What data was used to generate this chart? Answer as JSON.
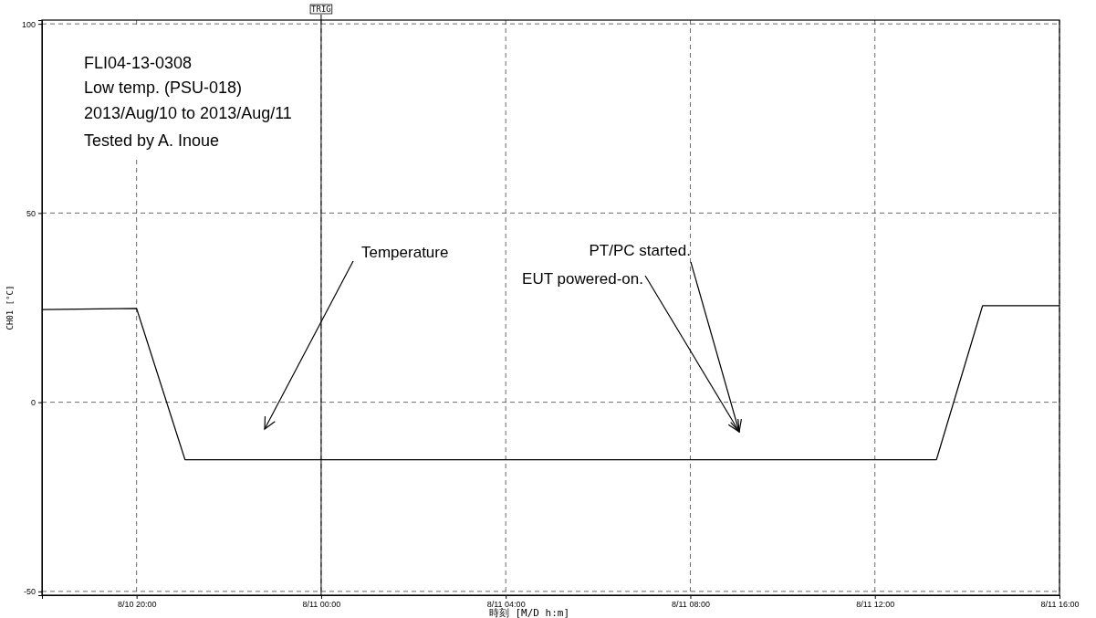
{
  "chart_data": {
    "type": "line",
    "xlabel": "時刻 [M/D h:m]",
    "ylabel": "CH01 [°C]",
    "x": [
      "2013-08-10T17:57",
      "2013-08-10T20:00",
      "2013-08-10T21:03",
      "2013-08-11T13:20",
      "2013-08-11T14:20",
      "2013-08-11T16:00"
    ],
    "series": [
      {
        "color": "#000000",
        "values": [
          24.5,
          24.8,
          -15.2,
          -15.2,
          25.5,
          25.5
        ]
      }
    ],
    "xlim": [
      "2013-08-10T17:57",
      "2013-08-11T16:00"
    ],
    "xticks": [
      {
        "value": "2013-08-10T20:00",
        "label": "8/10 20:00"
      },
      {
        "value": "2013-08-11T00:00",
        "label": "8/11 00:00"
      },
      {
        "value": "2013-08-11T04:00",
        "label": "8/11 04:00"
      },
      {
        "value": "2013-08-11T08:00",
        "label": "8/11 08:00"
      },
      {
        "value": "2013-08-11T12:00",
        "label": "8/11 12:00"
      },
      {
        "value": "2013-08-11T16:00",
        "label": "8/11 16:00"
      }
    ],
    "ylim": [
      -51,
      101
    ],
    "yticks": [
      -50,
      0,
      50,
      100
    ],
    "grid": true,
    "marker": "none",
    "line_style": "solid",
    "ref_lines": [
      {
        "axis": "x",
        "value": "2013-08-11T00:00",
        "label": "TRIG",
        "color": "#000000"
      }
    ],
    "annotations": [
      "FLI04-13-0308",
      "Low temp. (PSU-018)",
      "2013/Aug/10 to 2013/Aug/11",
      "Tested by A. Inoue",
      "Temperature",
      "PT/PC started.",
      "EUT powered-on."
    ]
  }
}
